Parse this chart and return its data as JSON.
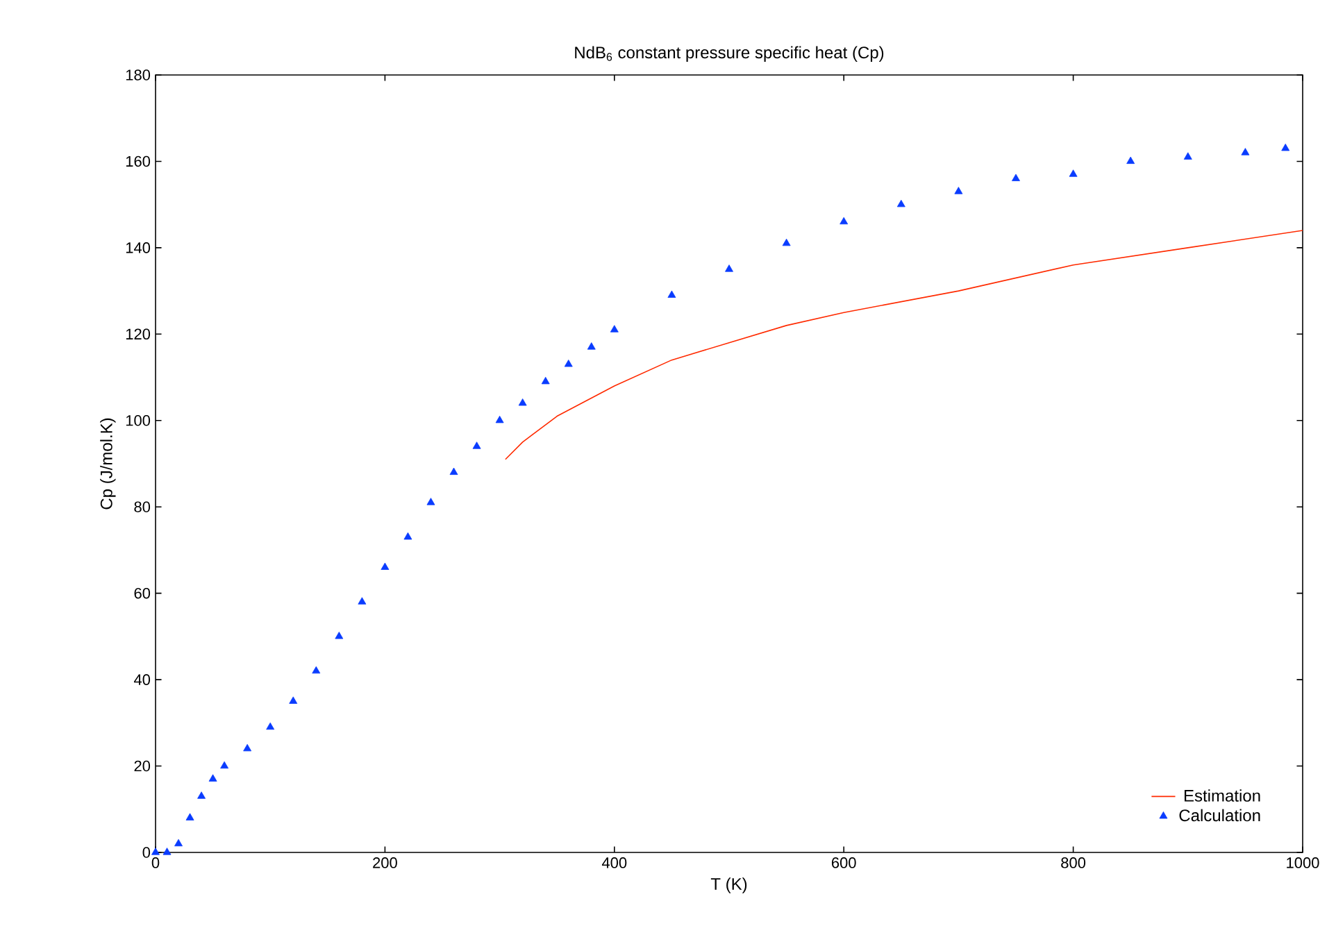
{
  "chart_data": {
    "type": "line",
    "title": "NdB$_{6}$ constant pressure specific heat (Cp)",
    "xlabel": "T (K)",
    "ylabel": "Cp (J/mol.K)",
    "xlim": [
      0,
      1000
    ],
    "xticks": [
      0,
      200,
      400,
      600,
      800,
      1000
    ],
    "ylim": [
      0,
      180
    ],
    "yticks": [
      0,
      20,
      40,
      60,
      80,
      100,
      120,
      140,
      160,
      180
    ],
    "legend": "bottom right",
    "series": [
      {
        "name": "Estimation",
        "color": "#ff2a00",
        "marker": "none",
        "x": [
          305,
          320,
          350,
          400,
          450,
          500,
          550,
          600,
          700,
          800,
          900,
          1000
        ],
        "values": [
          91,
          95,
          101,
          108,
          114,
          118,
          122,
          125,
          130,
          136,
          140,
          144
        ]
      },
      {
        "name": "Calculation",
        "type": "scatter",
        "color": "#0a3cff",
        "marker": "triangle",
        "x": [
          0,
          10,
          20,
          30,
          40,
          50,
          60,
          80,
          100,
          120,
          140,
          160,
          180,
          200,
          220,
          240,
          260,
          280,
          300,
          320,
          340,
          360,
          380,
          400,
          450,
          500,
          550,
          600,
          650,
          700,
          750,
          800,
          850,
          900,
          950,
          985
        ],
        "values": [
          0,
          0,
          2,
          8,
          13,
          17,
          20,
          24,
          29,
          35,
          42,
          50,
          58,
          66,
          73,
          81,
          88,
          94,
          100,
          104,
          109,
          113,
          117,
          121,
          129,
          135,
          141,
          146,
          150,
          153,
          156,
          157,
          160,
          161,
          162,
          163
        ]
      }
    ]
  }
}
